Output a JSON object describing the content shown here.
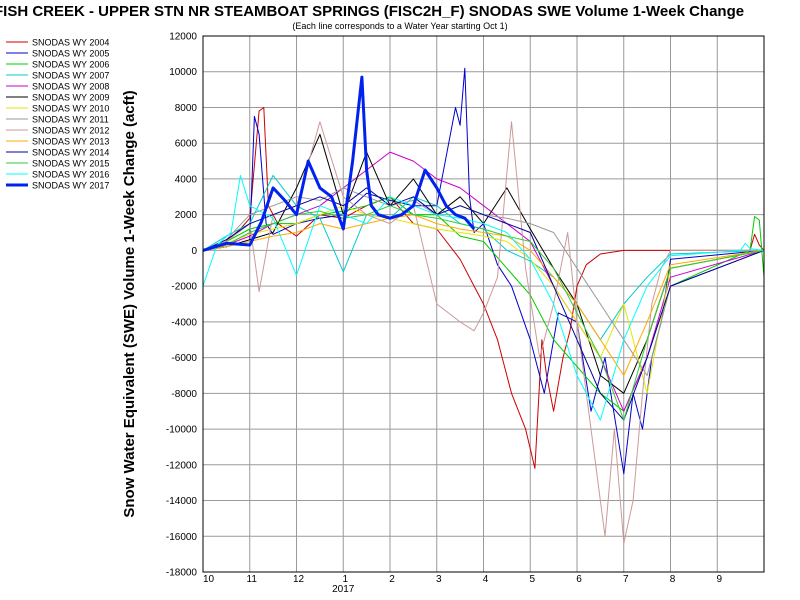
{
  "chart_data": {
    "type": "line",
    "title": "FISH CREEK - UPPER STN NR STEAMBOAT SPRINGS (FISC2H_F) SNODAS SWE Volume 1-Week Change",
    "subtitle": "(Each line corresponds to a Water Year starting Oct 1)",
    "ylabel": "Snow Water Equivalent (SWE) Volume 1-Week Change (acft)",
    "xlabel": "",
    "ylim": [
      -18000,
      12000
    ],
    "yticks": [
      12000,
      10000,
      8000,
      6000,
      4000,
      2000,
      0,
      -2000,
      -4000,
      -6000,
      -8000,
      -10000,
      -12000,
      -14000,
      -16000,
      -18000
    ],
    "xticks": [
      "10",
      "11",
      "12",
      "1",
      "2",
      "3",
      "4",
      "5",
      "6",
      "7",
      "8",
      "9"
    ],
    "xtick_months": [
      0,
      1,
      2,
      3,
      4,
      5,
      6,
      7,
      8,
      9,
      10,
      11
    ],
    "xsublabel": "2017",
    "xsublabel_month": 3,
    "xlim_months": [
      0,
      12
    ],
    "grid": true,
    "legend_position": "top-left",
    "series": [
      {
        "name": "SNODAS WY 2004",
        "color": "#cc0000",
        "width": 1,
        "x": [
          0,
          0.4,
          0.8,
          1.0,
          1.2,
          1.3,
          1.4,
          1.6,
          2.0,
          2.5,
          3.0,
          3.5,
          4.0,
          4.5,
          5.0,
          5.5,
          5.8,
          6.0,
          6.3,
          6.6,
          6.9,
          7.1,
          7.25,
          7.35,
          7.5,
          7.7,
          7.85,
          8.0,
          8.2,
          8.5,
          9.0,
          10.0,
          11.0,
          11.7,
          11.8,
          11.9,
          12.0
        ],
        "y": [
          0,
          300,
          1200,
          1800,
          7800,
          8000,
          2500,
          1500,
          800,
          2000,
          1800,
          2500,
          3000,
          1500,
          1200,
          -500,
          -2000,
          -3000,
          -5000,
          -8000,
          -10000,
          -12200,
          -5000,
          -7000,
          -9000,
          -6000,
          -4500,
          -2000,
          -800,
          -200,
          0,
          0,
          0,
          0,
          900,
          300,
          0
        ]
      },
      {
        "name": "SNODAS WY 2005",
        "color": "#0000cc",
        "width": 1,
        "x": [
          0,
          0.5,
          1.0,
          1.1,
          1.2,
          1.35,
          1.5,
          2.0,
          2.5,
          3.0,
          3.5,
          4.0,
          4.5,
          5.0,
          5.4,
          5.5,
          5.6,
          5.7,
          5.8,
          6.0,
          6.3,
          6.6,
          7.0,
          7.3,
          7.6,
          8.0,
          8.3,
          8.6,
          9.0,
          9.2,
          9.4,
          9.6,
          9.8,
          10.0,
          12.0
        ],
        "y": [
          0,
          200,
          600,
          7500,
          6500,
          1500,
          900,
          1500,
          1800,
          2000,
          3200,
          2800,
          2500,
          2500,
          8000,
          7000,
          10200,
          3000,
          1000,
          1500,
          -800,
          -2000,
          -5000,
          -8000,
          -3500,
          -4000,
          -9000,
          -6000,
          -12500,
          -8000,
          -10000,
          -6000,
          -4000,
          -500,
          0
        ]
      },
      {
        "name": "SNODAS WY 2006",
        "color": "#00cc00",
        "width": 1,
        "x": [
          0,
          0.5,
          1.0,
          1.5,
          2.0,
          2.5,
          3.0,
          3.5,
          4.0,
          4.5,
          5.0,
          5.5,
          6.0,
          6.5,
          7.0,
          7.5,
          8.0,
          8.5,
          9.0,
          9.5,
          10.0,
          11.7,
          11.8,
          11.9,
          12.0
        ],
        "y": [
          0,
          500,
          1200,
          1500,
          1500,
          2000,
          2200,
          2500,
          3000,
          2000,
          2000,
          800,
          500,
          -1000,
          -2500,
          -5000,
          -6500,
          -8000,
          -9000,
          -6000,
          -2000,
          0,
          1900,
          1700,
          -1500
        ]
      },
      {
        "name": "SNODAS WY 2007",
        "color": "#00cccc",
        "width": 1,
        "x": [
          0,
          0.5,
          1.0,
          1.5,
          2.0,
          2.5,
          3.0,
          3.5,
          4.0,
          4.5,
          5.0,
          5.5,
          6.0,
          6.5,
          7.0,
          7.5,
          8.0,
          8.5,
          9.0,
          9.5,
          10.0,
          12.0
        ],
        "y": [
          0,
          800,
          1500,
          4200,
          2500,
          1800,
          -1200,
          2000,
          1800,
          3000,
          2500,
          1500,
          1200,
          0,
          -600,
          -1500,
          -3000,
          -5000,
          -3000,
          -1500,
          -200,
          0
        ]
      },
      {
        "name": "SNODAS WY 2008",
        "color": "#cc00cc",
        "width": 1,
        "x": [
          0,
          0.5,
          1.0,
          1.5,
          2.0,
          2.5,
          3.0,
          3.5,
          4.0,
          4.5,
          5.0,
          5.5,
          6.0,
          6.5,
          7.0,
          7.5,
          8.0,
          8.5,
          9.0,
          9.5,
          10.0,
          12.0
        ],
        "y": [
          0,
          300,
          800,
          1500,
          2000,
          2500,
          3500,
          4500,
          5500,
          5000,
          4000,
          3500,
          2500,
          1500,
          500,
          -2000,
          -4000,
          -6000,
          -9000,
          -6000,
          -1500,
          0
        ]
      },
      {
        "name": "SNODAS WY 2009",
        "color": "#000000",
        "width": 1,
        "x": [
          0,
          0.5,
          1.0,
          1.5,
          2.0,
          2.5,
          3.0,
          3.5,
          4.0,
          4.5,
          5.0,
          5.5,
          6.0,
          6.5,
          7.0,
          7.5,
          8.0,
          8.5,
          9.0,
          9.5,
          10.0,
          12.0
        ],
        "y": [
          0,
          200,
          600,
          1000,
          3500,
          6500,
          2000,
          5500,
          2500,
          4000,
          2000,
          3000,
          1500,
          3500,
          1200,
          -1000,
          -3000,
          -7000,
          -8000,
          -5000,
          -1000,
          0
        ]
      },
      {
        "name": "SNODAS WY 2010",
        "color": "#e6e600",
        "width": 1,
        "x": [
          0,
          0.5,
          1.0,
          1.5,
          2.0,
          2.5,
          3.0,
          3.5,
          4.0,
          4.5,
          5.0,
          5.5,
          6.0,
          6.5,
          7.0,
          7.5,
          8.0,
          8.5,
          9.0,
          9.5,
          10.0,
          12.0
        ],
        "y": [
          0,
          400,
          900,
          1200,
          1500,
          2000,
          2500,
          2000,
          1800,
          1500,
          1200,
          1000,
          800,
          500,
          -500,
          -2000,
          -4000,
          -6000,
          -3000,
          -8000,
          -1000,
          0
        ]
      },
      {
        "name": "SNODAS WY 2011",
        "color": "#999999",
        "width": 1,
        "x": [
          0,
          0.5,
          1.0,
          1.5,
          2.0,
          2.5,
          3.0,
          3.5,
          4.0,
          4.5,
          5.0,
          5.5,
          6.0,
          6.5,
          7.0,
          7.5,
          8.0,
          8.5,
          9.0,
          9.5,
          10.0,
          12.0
        ],
        "y": [
          0,
          600,
          2000,
          2500,
          3000,
          2800,
          3500,
          3000,
          2500,
          2800,
          2000,
          2500,
          2000,
          1800,
          1500,
          1000,
          -1000,
          -3000,
          -5000,
          -7000,
          -2000,
          0
        ]
      },
      {
        "name": "SNODAS WY 2012",
        "color": "#cc9999",
        "width": 1,
        "x": [
          0,
          0.5,
          1.0,
          1.2,
          1.5,
          2.0,
          2.5,
          3.0,
          3.5,
          4.0,
          4.5,
          5.0,
          5.5,
          5.8,
          6.0,
          6.3,
          6.6,
          6.9,
          7.2,
          7.5,
          7.8,
          8.0,
          8.2,
          8.4,
          8.6,
          8.8,
          9.0,
          9.2,
          9.4,
          9.6,
          9.8,
          10.0,
          12.0
        ],
        "y": [
          0,
          500,
          1500,
          -2300,
          2000,
          2500,
          7200,
          3000,
          2000,
          1500,
          2500,
          -3000,
          -4000,
          -4500,
          -3500,
          -1500,
          7200,
          -1000,
          -6000,
          -3000,
          1000,
          -4000,
          -8000,
          -12000,
          -16000,
          -10000,
          -16400,
          -14000,
          -8000,
          -3000,
          -1000,
          0,
          0
        ]
      },
      {
        "name": "SNODAS WY 2013",
        "color": "#ffaa00",
        "width": 1,
        "x": [
          0,
          0.5,
          1.0,
          1.5,
          2.0,
          2.5,
          3.0,
          3.5,
          4.0,
          4.5,
          5.0,
          5.5,
          6.0,
          6.5,
          7.0,
          7.5,
          8.0,
          8.5,
          9.0,
          9.5,
          10.0,
          12.0
        ],
        "y": [
          0,
          200,
          500,
          800,
          1000,
          1500,
          1200,
          1500,
          1800,
          2000,
          1500,
          1200,
          1000,
          800,
          0,
          -1500,
          -3000,
          -5000,
          -7000,
          -4000,
          -800,
          0
        ]
      },
      {
        "name": "SNODAS WY 2014",
        "color": "#000099",
        "width": 1,
        "x": [
          0,
          0.5,
          1.0,
          1.5,
          2.0,
          2.5,
          3.0,
          3.5,
          4.0,
          4.5,
          5.0,
          5.5,
          6.0,
          6.5,
          7.0,
          7.5,
          8.0,
          8.5,
          9.0,
          9.5,
          10.0,
          12.0
        ],
        "y": [
          0,
          600,
          1500,
          2000,
          2500,
          3000,
          2500,
          3500,
          2500,
          3000,
          2000,
          2500,
          2000,
          1500,
          1000,
          -2000,
          -5000,
          -8000,
          -9500,
          -6000,
          -2000,
          0
        ]
      },
      {
        "name": "SNODAS WY 2015",
        "color": "#33cc33",
        "width": 1,
        "x": [
          0,
          0.5,
          1.0,
          1.5,
          2.0,
          2.5,
          3.0,
          3.5,
          4.0,
          4.5,
          5.0,
          5.5,
          6.0,
          6.5,
          7.0,
          7.5,
          8.0,
          8.5,
          9.0,
          9.5,
          10.0,
          12.0
        ],
        "y": [
          0,
          300,
          1000,
          1500,
          2000,
          2200,
          1800,
          2000,
          2500,
          2000,
          1800,
          1500,
          1200,
          800,
          500,
          -1000,
          -3500,
          -6000,
          -9500,
          -5000,
          -1000,
          0
        ]
      },
      {
        "name": "SNODAS WY 2016",
        "color": "#00ffff",
        "width": 1,
        "x": [
          0,
          0.3,
          0.6,
          0.8,
          1.0,
          1.5,
          2.0,
          2.5,
          3.0,
          3.5,
          4.0,
          4.5,
          5.0,
          5.5,
          6.0,
          6.5,
          7.0,
          7.5,
          8.0,
          8.5,
          9.0,
          9.5,
          10.0,
          11.5,
          11.6,
          11.7,
          12.0
        ],
        "y": [
          -2000,
          300,
          1000,
          4200,
          2500,
          1800,
          -1400,
          2500,
          2000,
          1500,
          3000,
          2500,
          2000,
          1800,
          1500,
          1000,
          -500,
          -3000,
          -7000,
          -9500,
          -5000,
          -2000,
          -300,
          0,
          400,
          100,
          0
        ]
      },
      {
        "name": "SNODAS WY 2017",
        "color": "#0022ee",
        "width": 3,
        "x": [
          0,
          0.5,
          1.0,
          1.25,
          1.5,
          1.75,
          2.0,
          2.25,
          2.5,
          2.75,
          3.0,
          3.2,
          3.4,
          3.5,
          3.6,
          3.75,
          4.0,
          4.25,
          4.5,
          4.75,
          5.0,
          5.2,
          5.4,
          5.6,
          5.8
        ],
        "y": [
          0,
          400,
          300,
          1600,
          3500,
          2800,
          2000,
          5000,
          3500,
          3000,
          1200,
          5000,
          9700,
          4500,
          2500,
          2000,
          1800,
          2000,
          2500,
          4500,
          3500,
          2500,
          2000,
          1800,
          1200
        ]
      }
    ]
  }
}
